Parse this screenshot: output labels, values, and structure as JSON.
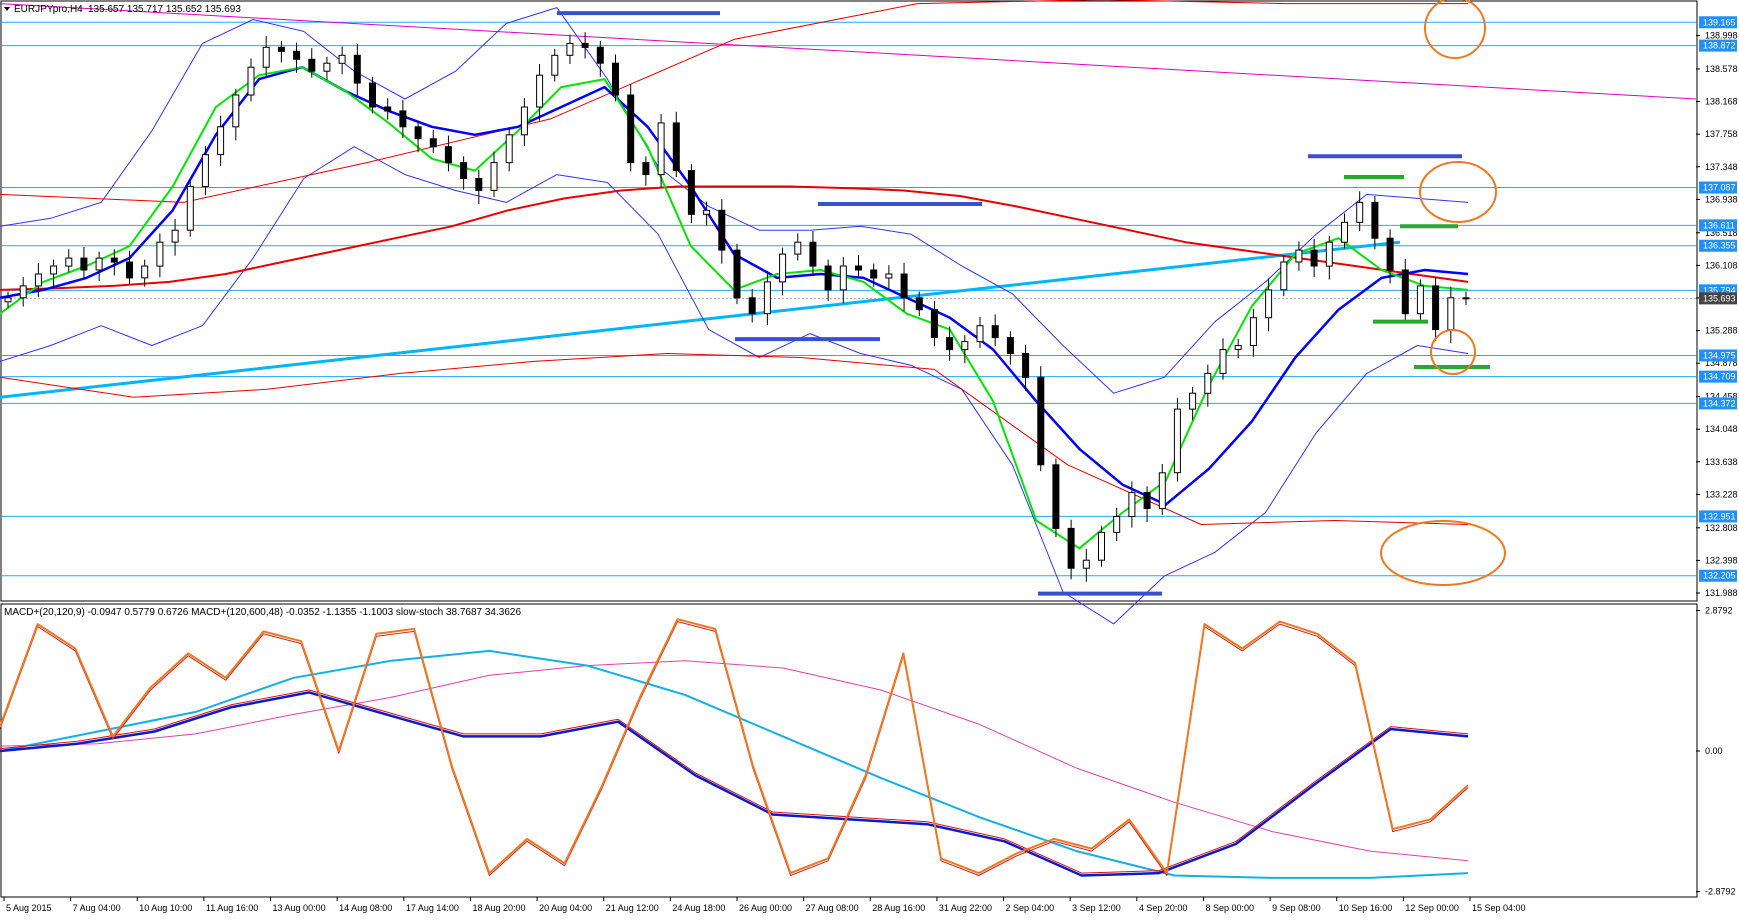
{
  "window": {
    "symbol_title": "EURJPYpro,H4",
    "ohlc_text": "135.657 135.717 135.652 135.693"
  },
  "indicator_title": "MACD+(20,120,9) -0.0947 0.5779 0.6726  MACD+(120,600,48) -0.0352 -1.1355 -1.1003  slow-stoch 38.7687 34.3626",
  "colors": {
    "candle_up": "#ffffff",
    "candle_down": "#000000",
    "ema_fast": "#00e600",
    "ema_mid": "#0000ff",
    "sma_long": "#e80000",
    "trend_cyan": "#00b4ff",
    "trend_magenta": "#e000c0",
    "bollinger": "#3333ff",
    "h_line": "#22a8ff",
    "price_label_bg": "#1e90ff",
    "annotation_circle": "#f07820",
    "stoch": "#f07820",
    "stoch_signal": "#cc2222"
  },
  "price_axis": {
    "ticks": [
      "138.998",
      "138.578",
      "138.168",
      "137.758",
      "137.348",
      "136.938",
      "136.518",
      "136.108",
      "135.698",
      "135.288",
      "134.878",
      "134.458",
      "134.048",
      "133.638",
      "133.228",
      "132.808",
      "132.398",
      "131.988"
    ],
    "ylim": [
      131.9,
      139.42
    ]
  },
  "price_labels": [
    "139.165",
    "138.872",
    "137.087",
    "136.611",
    "136.355",
    "135.794",
    "135.693",
    "134.975",
    "134.709",
    "134.372",
    "132.951",
    "132.205"
  ],
  "indicator_axis": {
    "ticks": [
      "2.8792",
      "0.00",
      "-2.8792"
    ],
    "ylim": [
      -2.97,
      2.97
    ]
  },
  "time_axis": {
    "labels": [
      "5 Aug 2015",
      "7 Aug 04:00",
      "10 Aug 10:00",
      "11 Aug 16:00",
      "13 Aug 00:00",
      "14 Aug 08:00",
      "17 Aug 14:00",
      "18 Aug 20:00",
      "20 Aug 04:00",
      "21 Aug 12:00",
      "24 Aug 18:00",
      "26 Aug 00:00",
      "27 Aug 08:00",
      "28 Aug 16:00",
      "31 Aug 22:00",
      "2 Sep 04:00",
      "3 Sep 12:00",
      "4 Sep 20:00",
      "8 Sep 00:00",
      "9 Sep 08:00",
      "10 Sep 16:00",
      "12 Sep 00:00",
      "15 Sep 04:00"
    ]
  },
  "chart_data": [
    {
      "type": "candlestick",
      "series": [
        {
          "name": "EURJPYpro,H4",
          "close": [
            135.7,
            135.85,
            136.0,
            136.1,
            136.2,
            136.05,
            136.2,
            136.15,
            135.95,
            136.1,
            136.4,
            136.55,
            137.1,
            137.5,
            137.85,
            138.25,
            138.6,
            138.85,
            138.8,
            138.7,
            138.55,
            138.65,
            138.75,
            138.4,
            138.1,
            138.05,
            137.85,
            137.7,
            137.6,
            137.4,
            137.2,
            137.05,
            137.4,
            137.75,
            138.1,
            138.5,
            138.75,
            138.9,
            138.85,
            138.65,
            138.25,
            137.4,
            137.25,
            137.9,
            137.3,
            136.75,
            136.8,
            136.3,
            135.7,
            135.5,
            135.9,
            136.25,
            136.4,
            136.1,
            135.8,
            136.1,
            136.05,
            135.95,
            136.0,
            135.7,
            135.55,
            135.2,
            135.05,
            135.15,
            135.35,
            135.2,
            135.0,
            134.7,
            133.6,
            132.8,
            132.3,
            132.4,
            132.75,
            132.95,
            133.25,
            133.05,
            133.5,
            134.3,
            134.5,
            134.75,
            135.05,
            135.1,
            135.45,
            135.8,
            136.15,
            136.3,
            136.1,
            136.4,
            136.65,
            136.9,
            136.45,
            136.05,
            135.5,
            135.85,
            135.3,
            135.7,
            135.69
          ]
        },
        {
          "name": "EMA fast",
          "values": [
            135.5,
            135.9,
            136.1,
            136.35,
            137.1,
            138.1,
            138.5,
            138.6,
            138.3,
            137.9,
            137.45,
            137.3,
            137.8,
            138.35,
            138.45,
            137.6,
            136.35,
            135.8,
            136.0,
            136.05,
            135.9,
            135.5,
            135.3,
            134.4,
            132.9,
            132.55,
            133.0,
            133.4,
            134.6,
            135.6,
            136.25,
            136.45,
            136.05,
            135.85,
            135.8
          ]
        },
        {
          "name": "EMA mid",
          "values": [
            135.7,
            135.8,
            135.95,
            136.2,
            136.8,
            137.75,
            138.45,
            138.6,
            138.3,
            138.05,
            137.85,
            137.75,
            137.85,
            138.1,
            138.35,
            137.85,
            137.1,
            136.25,
            135.95,
            136.0,
            135.95,
            135.7,
            135.45,
            135.05,
            134.4,
            133.8,
            133.35,
            133.1,
            133.55,
            134.15,
            134.95,
            135.55,
            135.95,
            136.05,
            136.0
          ]
        },
        {
          "name": "SMA long",
          "values": [
            135.8,
            135.82,
            135.85,
            135.9,
            136.0,
            136.15,
            136.3,
            136.45,
            136.6,
            136.8,
            136.95,
            137.05,
            137.1,
            137.1,
            137.1,
            137.08,
            137.05,
            136.98,
            136.85,
            136.7,
            136.55,
            136.4,
            136.3,
            136.2,
            136.1,
            136.0,
            135.9
          ]
        },
        {
          "name": "Bollinger upper",
          "values": [
            136.6,
            136.7,
            136.9,
            137.8,
            138.9,
            139.2,
            139.05,
            138.55,
            138.2,
            138.55,
            139.15,
            139.35,
            138.45,
            137.35,
            136.85,
            136.55,
            136.55,
            136.6,
            136.5,
            136.1,
            135.75,
            135.1,
            134.5,
            134.7,
            135.4,
            135.9,
            136.5,
            137.0,
            136.95,
            136.9
          ]
        },
        {
          "name": "Bollinger lower",
          "values": [
            134.9,
            135.1,
            135.35,
            135.1,
            135.35,
            136.2,
            137.2,
            137.6,
            137.25,
            137.05,
            136.9,
            137.25,
            137.15,
            136.5,
            135.3,
            134.95,
            135.25,
            135.0,
            134.85,
            134.55,
            133.6,
            132.0,
            131.6,
            132.2,
            132.5,
            133.0,
            134.0,
            134.75,
            135.1,
            135.0
          ]
        },
        {
          "name": "Envelope upper",
          "values": [
            137.0,
            136.9,
            137.4,
            137.95,
            138.95,
            139.4,
            139.45,
            139.4,
            139.4
          ]
        },
        {
          "name": "Envelope lower",
          "values": [
            134.7,
            134.45,
            134.55,
            134.75,
            134.9,
            135.0,
            134.95,
            134.8,
            133.6,
            132.85,
            132.9,
            132.85
          ]
        },
        {
          "name": "Trendline cyan",
          "values": [
            134.45,
            136.4
          ]
        },
        {
          "name": "Trendline magenta",
          "values": [
            139.4,
            138.2
          ]
        }
      ],
      "levels": [
        139.165,
        138.872,
        137.087,
        136.611,
        136.355,
        135.794,
        134.975,
        134.709,
        134.372,
        132.951,
        132.205
      ],
      "ylim": [
        131.9,
        139.42
      ]
    },
    {
      "type": "line",
      "series": [
        {
          "name": "slow-stoch",
          "values": [
            0.5,
            2.6,
            2.1,
            0.3,
            1.3,
            2.0,
            1.5,
            2.45,
            2.25,
            0.0,
            2.4,
            2.5,
            -0.3,
            -2.5,
            -1.8,
            -2.3,
            -0.7,
            1.1,
            2.7,
            2.5,
            -0.3,
            -2.5,
            -2.2,
            -0.5,
            2.0,
            -2.2,
            -2.5,
            -2.1,
            -1.8,
            -2.0,
            -1.4,
            -2.5,
            2.6,
            2.1,
            2.65,
            2.4,
            1.8,
            -1.6,
            -1.4,
            -0.7
          ]
        },
        {
          "name": "MACD fast",
          "values": [
            0.0,
            0.15,
            0.4,
            0.9,
            1.2,
            0.75,
            0.3,
            0.3,
            0.6,
            -0.5,
            -1.3,
            -1.4,
            -1.5,
            -1.85,
            -2.55,
            -2.5,
            -1.9,
            -0.7,
            0.45,
            0.3
          ]
        },
        {
          "name": "MACD slow",
          "values": [
            0.0,
            0.4,
            0.8,
            1.5,
            1.85,
            2.05,
            1.75,
            1.15,
            0.3,
            -0.55,
            -1.35,
            -2.05,
            -2.55,
            -2.6,
            -2.6,
            -2.5
          ]
        },
        {
          "name": "MACD long",
          "values": [
            0.1,
            0.15,
            0.35,
            0.75,
            1.1,
            1.55,
            1.75,
            1.85,
            1.7,
            1.25,
            0.55,
            -0.35,
            -1.05,
            -1.65,
            -2.05,
            -2.25
          ]
        }
      ],
      "ylim": [
        -2.97,
        2.97
      ]
    }
  ]
}
